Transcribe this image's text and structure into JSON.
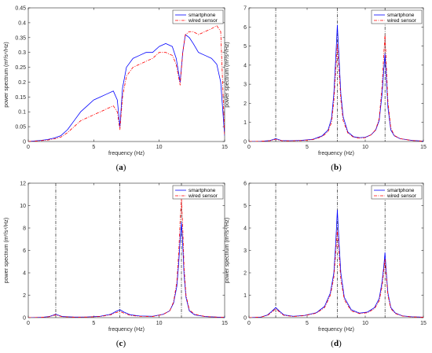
{
  "chart_data": [
    {
      "panel_label": "(a)",
      "type": "line",
      "xlabel": "frequency (Hz)",
      "ylabel": "power spectrum (m²/s⁴/Hz)",
      "xlim": [
        0,
        15
      ],
      "ylim": [
        0,
        0.45
      ],
      "xticks": [
        "0",
        "5",
        "10",
        "15"
      ],
      "yticks": [
        "0",
        "0.05",
        "0.1",
        "0.15",
        "0.2",
        "0.25",
        "0.3",
        "0.35",
        "0.4",
        "0.45"
      ],
      "legend": {
        "position": "top-right"
      },
      "vlines": [],
      "series": [
        {
          "name": "smartphone",
          "color": "#0000ff",
          "style": "solid",
          "x": [
            0,
            0.5,
            1,
            1.5,
            2,
            2.5,
            3,
            3.5,
            4,
            4.5,
            5,
            5.5,
            6,
            6.5,
            6.8,
            7.0,
            7.2,
            7.5,
            8,
            8.5,
            9,
            9.5,
            10,
            10.5,
            11,
            11.3,
            11.6,
            11.8,
            12,
            12.3,
            12.6,
            13,
            13.5,
            14,
            14.4,
            14.7,
            15
          ],
          "y": [
            0,
            0.002,
            0.004,
            0.007,
            0.012,
            0.02,
            0.04,
            0.07,
            0.1,
            0.12,
            0.14,
            0.15,
            0.16,
            0.17,
            0.14,
            0.05,
            0.18,
            0.25,
            0.28,
            0.29,
            0.3,
            0.3,
            0.32,
            0.33,
            0.32,
            0.28,
            0.2,
            0.3,
            0.36,
            0.35,
            0.33,
            0.3,
            0.29,
            0.28,
            0.26,
            0.2,
            0.02
          ]
        },
        {
          "name": "wired sensor",
          "color": "#ff0000",
          "style": "dashdot",
          "x": [
            0,
            0.5,
            1,
            1.5,
            2,
            2.5,
            3,
            3.5,
            4,
            4.5,
            5,
            5.5,
            6,
            6.5,
            6.8,
            7.0,
            7.2,
            7.5,
            8,
            8.5,
            9,
            9.5,
            10,
            10.5,
            11,
            11.3,
            11.6,
            11.8,
            12,
            12.3,
            12.6,
            13,
            13.5,
            14,
            14.4,
            14.7,
            15
          ],
          "y": [
            0,
            0.001,
            0.003,
            0.005,
            0.009,
            0.015,
            0.03,
            0.05,
            0.07,
            0.08,
            0.09,
            0.1,
            0.11,
            0.12,
            0.1,
            0.04,
            0.15,
            0.22,
            0.25,
            0.26,
            0.27,
            0.28,
            0.3,
            0.3,
            0.29,
            0.26,
            0.19,
            0.3,
            0.36,
            0.37,
            0.37,
            0.36,
            0.37,
            0.38,
            0.39,
            0.37,
            0.02
          ]
        }
      ]
    },
    {
      "panel_label": "(b)",
      "type": "line",
      "xlabel": "frequency (Hz)",
      "ylabel": "power spectrum (m²/s⁴/Hz)",
      "xlim": [
        0,
        15
      ],
      "ylim": [
        0,
        7
      ],
      "xticks": [
        "0",
        "5",
        "10",
        "15"
      ],
      "yticks": [
        "0",
        "1",
        "2",
        "3",
        "4",
        "5",
        "6",
        "7"
      ],
      "legend": {
        "position": "top-right"
      },
      "vlines": [
        2.3,
        7.6,
        11.7
      ],
      "series": [
        {
          "name": "smartphone",
          "color": "#0000ff",
          "style": "solid",
          "x": [
            0,
            1,
            1.8,
            2.3,
            2.8,
            3.5,
            4.5,
            5.5,
            6.3,
            6.8,
            7.1,
            7.3,
            7.45,
            7.6,
            7.75,
            7.9,
            8.1,
            8.5,
            9,
            9.5,
            10,
            10.5,
            10.9,
            11.2,
            11.45,
            11.6,
            11.7,
            11.8,
            11.95,
            12.2,
            12.5,
            13,
            14,
            15
          ],
          "y": [
            0,
            0.01,
            0.05,
            0.15,
            0.05,
            0.04,
            0.06,
            0.12,
            0.3,
            0.6,
            1.2,
            2.5,
            4.2,
            6.1,
            4.3,
            2.5,
            1.3,
            0.5,
            0.25,
            0.2,
            0.22,
            0.35,
            0.6,
            1.1,
            2.5,
            3.8,
            4.6,
            3.5,
            1.8,
            0.6,
            0.3,
            0.15,
            0.06,
            0.02
          ]
        },
        {
          "name": "wired sensor",
          "color": "#ff0000",
          "style": "dashdot",
          "x": [
            0,
            1,
            1.8,
            2.3,
            2.8,
            3.5,
            4.5,
            5.5,
            6.3,
            6.8,
            7.1,
            7.3,
            7.45,
            7.6,
            7.75,
            7.9,
            8.1,
            8.5,
            9,
            9.5,
            10,
            10.5,
            10.9,
            11.2,
            11.45,
            11.6,
            11.7,
            11.8,
            11.95,
            12.2,
            12.5,
            13,
            14,
            15
          ],
          "y": [
            0,
            0.01,
            0.04,
            0.12,
            0.04,
            0.03,
            0.05,
            0.1,
            0.26,
            0.52,
            1.0,
            2.1,
            3.6,
            5.1,
            3.7,
            2.2,
            1.1,
            0.45,
            0.22,
            0.18,
            0.2,
            0.35,
            0.62,
            1.2,
            2.9,
            4.6,
            5.6,
            4.2,
            2.1,
            0.7,
            0.32,
            0.15,
            0.05,
            0.02
          ]
        }
      ]
    },
    {
      "panel_label": "(c)",
      "type": "line",
      "xlabel": "frequency (Hz)",
      "ylabel": "power spectrum (m²/s⁴/Hz)",
      "xlim": [
        0,
        15
      ],
      "ylim": [
        0,
        12
      ],
      "xticks": [
        "0",
        "5",
        "10",
        "15"
      ],
      "yticks": [
        "0",
        "2",
        "4",
        "6",
        "8",
        "10",
        "12"
      ],
      "legend": {
        "position": "top-right"
      },
      "vlines": [
        2.1,
        7.0,
        11.7
      ],
      "series": [
        {
          "name": "smartphone",
          "color": "#0000ff",
          "style": "solid",
          "x": [
            0,
            1,
            1.6,
            2.1,
            2.6,
            3.5,
            4.5,
            5.5,
            6.3,
            6.7,
            7.0,
            7.3,
            7.8,
            8.5,
            9.5,
            10.3,
            10.8,
            11.1,
            11.35,
            11.5,
            11.6,
            11.7,
            11.8,
            11.9,
            12.05,
            12.3,
            12.7,
            13.5,
            14.5,
            15
          ],
          "y": [
            0,
            0.02,
            0.1,
            0.3,
            0.1,
            0.05,
            0.06,
            0.12,
            0.3,
            0.55,
            0.7,
            0.5,
            0.25,
            0.15,
            0.12,
            0.3,
            0.6,
            1.3,
            2.8,
            5.0,
            7.0,
            8.5,
            6.5,
            3.8,
            1.8,
            0.6,
            0.25,
            0.1,
            0.04,
            0.02
          ]
        },
        {
          "name": "wired sensor",
          "color": "#ff0000",
          "style": "dashdot",
          "x": [
            0,
            1,
            1.6,
            2.1,
            2.6,
            3.5,
            4.5,
            5.5,
            6.3,
            6.7,
            7.0,
            7.3,
            7.8,
            8.5,
            9.5,
            10.3,
            10.8,
            11.1,
            11.35,
            11.5,
            11.6,
            11.7,
            11.8,
            11.9,
            12.05,
            12.3,
            12.7,
            13.5,
            14.5,
            15
          ],
          "y": [
            0,
            0.02,
            0.08,
            0.25,
            0.08,
            0.04,
            0.05,
            0.1,
            0.25,
            0.45,
            0.55,
            0.4,
            0.2,
            0.12,
            0.1,
            0.28,
            0.6,
            1.4,
            3.2,
            6.0,
            8.6,
            10.6,
            8.0,
            4.5,
            2.0,
            0.7,
            0.3,
            0.1,
            0.04,
            0.02
          ]
        }
      ]
    },
    {
      "panel_label": "(d)",
      "type": "line",
      "xlabel": "frequency (Hz)",
      "ylabel": "power spectrum (m²/s⁴/Hz)",
      "xlim": [
        0,
        15
      ],
      "ylim": [
        0,
        6
      ],
      "xticks": [
        "0",
        "5",
        "10",
        "15"
      ],
      "yticks": [
        "0",
        "1",
        "2",
        "3",
        "4",
        "5",
        "6"
      ],
      "legend": {
        "position": "top-right"
      },
      "vlines": [
        2.3,
        7.6,
        11.7
      ],
      "series": [
        {
          "name": "smartphone",
          "color": "#0000ff",
          "style": "solid",
          "x": [
            0,
            1,
            1.6,
            2.0,
            2.3,
            2.6,
            3.0,
            3.8,
            4.8,
            5.8,
            6.5,
            7.0,
            7.3,
            7.45,
            7.6,
            7.75,
            7.9,
            8.2,
            8.8,
            9.5,
            10.2,
            10.8,
            11.2,
            11.45,
            11.6,
            11.7,
            11.8,
            11.95,
            12.2,
            12.6,
            13.2,
            14,
            15
          ],
          "y": [
            0,
            0.02,
            0.12,
            0.3,
            0.45,
            0.3,
            0.12,
            0.06,
            0.1,
            0.22,
            0.5,
            1.1,
            2.0,
            3.2,
            4.8,
            3.3,
            2.0,
            0.9,
            0.35,
            0.2,
            0.25,
            0.45,
            0.85,
            1.6,
            2.3,
            2.9,
            2.1,
            1.1,
            0.45,
            0.2,
            0.08,
            0.04,
            0.02
          ]
        },
        {
          "name": "wired sensor",
          "color": "#ff0000",
          "style": "dashdot",
          "x": [
            0,
            1,
            1.6,
            2.0,
            2.3,
            2.6,
            3.0,
            3.8,
            4.8,
            5.8,
            6.5,
            7.0,
            7.3,
            7.45,
            7.6,
            7.75,
            7.9,
            8.2,
            8.8,
            9.5,
            10.2,
            10.8,
            11.2,
            11.45,
            11.6,
            11.7,
            11.8,
            11.95,
            12.2,
            12.6,
            13.2,
            14,
            15
          ],
          "y": [
            0,
            0.02,
            0.1,
            0.26,
            0.4,
            0.26,
            0.1,
            0.05,
            0.09,
            0.2,
            0.45,
            1.0,
            1.8,
            2.8,
            3.9,
            2.8,
            1.7,
            0.8,
            0.3,
            0.18,
            0.22,
            0.4,
            0.75,
            1.4,
            2.1,
            2.6,
            1.9,
            1.0,
            0.4,
            0.18,
            0.07,
            0.03,
            0.02
          ]
        }
      ]
    }
  ]
}
